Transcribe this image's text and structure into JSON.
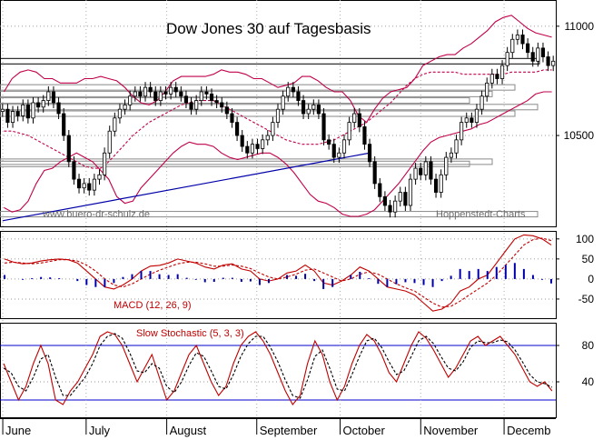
{
  "chart_data": [
    {
      "type": "candlestick",
      "title": "Dow Jones 30 auf Tagesbasis",
      "credit_left": "www.buero-dr-schulz.de",
      "credit_right": "Hoppenstedt-Charts",
      "y_ticks": [
        {
          "label": "11000",
          "value": 11000
        },
        {
          "label": "10500",
          "value": 10500
        }
      ],
      "ylim": [
        10080,
        11120
      ],
      "series": [
        {
          "name": "Kurs",
          "kind": "ohlc",
          "close": [
            10620,
            10560,
            10610,
            10590,
            10640,
            10580,
            10650,
            10630,
            10660,
            10700,
            10650,
            10600,
            10500,
            10380,
            10300,
            10260,
            10280,
            10250,
            10300,
            10320,
            10420,
            10520,
            10580,
            10620,
            10640,
            10680,
            10700,
            10680,
            10720,
            10700,
            10660,
            10700,
            10690,
            10720,
            10700,
            10680,
            10650,
            10620,
            10660,
            10700,
            10690,
            10660,
            10650,
            10630,
            10600,
            10560,
            10500,
            10450,
            10420,
            10460,
            10440,
            10480,
            10500,
            10560,
            10620,
            10680,
            10720,
            10700,
            10660,
            10600,
            10620,
            10640,
            10600,
            10480,
            10460,
            10400,
            10420,
            10480,
            10560,
            10600,
            10540,
            10460,
            10380,
            10280,
            10220,
            10180,
            10150,
            10200,
            10240,
            10180,
            10300,
            10350,
            10320,
            10380,
            10300,
            10240,
            10320,
            10400,
            10420,
            10480,
            10560,
            10580,
            10560,
            10620,
            10680,
            10740,
            10780,
            10760,
            10820,
            10880,
            10940,
            10960,
            10920,
            10880,
            10840,
            10900,
            10860,
            10820,
            10840
          ]
        },
        {
          "name": "Bollinger oben",
          "kind": "line",
          "color": "#c0004a",
          "values": [
            10700,
            10760,
            10790,
            10800,
            10790,
            10760,
            10760,
            10740,
            10740,
            10740,
            10760,
            10760,
            10770,
            10760,
            10750,
            10720,
            10680,
            10650,
            10640,
            10660,
            10700,
            10750,
            10770,
            10770,
            10770,
            10770,
            10780,
            10800,
            10790,
            10790,
            10780,
            10760,
            10760,
            10740,
            10720,
            10730,
            10740,
            10770,
            10770,
            10750,
            10720,
            10700,
            10700,
            10660,
            10590,
            10560,
            10620,
            10670,
            10700,
            10710,
            10720,
            10760,
            10820,
            10840,
            10860,
            10870,
            10870,
            10900,
            10920,
            10950,
            10980,
            11020,
            11040,
            11050,
            11020,
            10990,
            10970,
            10960,
            10950
          ]
        },
        {
          "name": "Bollinger mitte",
          "kind": "line",
          "color": "#c0004a",
          "dash": true,
          "values": [
            10520,
            10520,
            10510,
            10500,
            10480,
            10460,
            10440,
            10420,
            10400,
            10380,
            10360,
            10350,
            10350,
            10380,
            10420,
            10460,
            10500,
            10530,
            10560,
            10580,
            10600,
            10620,
            10640,
            10650,
            10660,
            10660,
            10660,
            10640,
            10620,
            10600,
            10580,
            10560,
            10540,
            10520,
            10500,
            10480,
            10470,
            10460,
            10460,
            10460,
            10470,
            10480,
            10500,
            10520,
            10540,
            10560,
            10590,
            10620,
            10650,
            10690,
            10730,
            10760,
            10780,
            10790,
            10790,
            10790,
            10790,
            10780,
            10780,
            10780,
            10780,
            10780,
            10780,
            10790,
            10790,
            10790,
            10790,
            10800,
            10800
          ]
        },
        {
          "name": "Bollinger unten",
          "kind": "line",
          "color": "#c0004a",
          "values": [
            10170,
            10150,
            10160,
            10200,
            10280,
            10340,
            10350,
            10380,
            10400,
            10420,
            10400,
            10380,
            10340,
            10300,
            10220,
            10190,
            10200,
            10260,
            10300,
            10340,
            10380,
            10420,
            10450,
            10470,
            10460,
            10460,
            10450,
            10420,
            10400,
            10390,
            10400,
            10410,
            10420,
            10420,
            10400,
            10370,
            10330,
            10280,
            10230,
            10200,
            10190,
            10170,
            10140,
            10130,
            10130,
            10140,
            10160,
            10200,
            10240,
            10280,
            10330,
            10380,
            10430,
            10470,
            10490,
            10500,
            10510,
            10520,
            10530,
            10550,
            10560,
            10580,
            10600,
            10620,
            10640,
            10660,
            10690,
            10700,
            10700
          ]
        },
        {
          "name": "Trendlinie",
          "kind": "segment",
          "color": "#0000aa",
          "points": [
            [
              0,
              10110
            ],
            [
              72,
              10420
            ]
          ]
        }
      ],
      "levels": [
        10840,
        10720,
        10690,
        10660,
        10630,
        10600,
        10380,
        10370,
        10140
      ],
      "grid": "dotted"
    },
    {
      "type": "line",
      "label": "MACD (12, 26, 9)",
      "y_ticks": [
        {
          "label": "100",
          "value": 100
        },
        {
          "label": "50",
          "value": 50
        },
        {
          "label": "0",
          "value": 0
        },
        {
          "label": "-50",
          "value": -50
        }
      ],
      "ylim": [
        -100,
        120
      ],
      "series": [
        {
          "name": "MACD",
          "color": "#c00000",
          "values": [
            50,
            42,
            38,
            40,
            45,
            48,
            50,
            48,
            40,
            20,
            0,
            -20,
            -25,
            -15,
            0,
            20,
            32,
            34,
            40,
            50,
            45,
            40,
            30,
            25,
            35,
            38,
            25,
            20,
            0,
            -5,
            0,
            15,
            20,
            35,
            20,
            -10,
            -15,
            -5,
            10,
            30,
            20,
            0,
            -20,
            -25,
            -30,
            -40,
            -60,
            -80,
            -75,
            -60,
            -30,
            -20,
            0,
            10,
            40,
            70,
            100,
            110,
            108,
            100,
            85
          ]
        },
        {
          "name": "Signal",
          "color": "#c00000",
          "dash": true,
          "values": [
            40,
            42,
            40,
            38,
            40,
            44,
            48,
            48,
            45,
            35,
            20,
            0,
            -15,
            -20,
            -12,
            0,
            12,
            22,
            30,
            38,
            42,
            42,
            38,
            32,
            32,
            35,
            32,
            26,
            15,
            5,
            0,
            5,
            12,
            22,
            25,
            15,
            5,
            -5,
            0,
            12,
            18,
            12,
            0,
            -12,
            -22,
            -30,
            -45,
            -60,
            -70,
            -68,
            -55,
            -40,
            -25,
            -10,
            10,
            35,
            60,
            85,
            98,
            102,
            96
          ]
        },
        {
          "name": "Histogramm",
          "kind": "bars",
          "color": "#0000aa",
          "values": [
            10,
            0,
            -2,
            2,
            5,
            4,
            2,
            0,
            -5,
            -15,
            -20,
            -20,
            -10,
            5,
            12,
            20,
            20,
            12,
            10,
            12,
            3,
            -2,
            -8,
            -7,
            3,
            3,
            -7,
            -6,
            -15,
            -10,
            0,
            10,
            8,
            13,
            -5,
            -25,
            -20,
            0,
            10,
            18,
            2,
            -12,
            -20,
            -13,
            -8,
            -10,
            -15,
            -20,
            -5,
            8,
            25,
            20,
            25,
            20,
            30,
            35,
            40,
            25,
            10,
            -2,
            -11
          ]
        }
      ],
      "grid": "dotted"
    },
    {
      "type": "line",
      "label": "Slow Stochastic (5, 3, 3)",
      "y_ticks": [
        {
          "label": "80",
          "value": 80
        },
        {
          "label": "40",
          "value": 40
        }
      ],
      "ylim": [
        0,
        105
      ],
      "bands": [
        80,
        20
      ],
      "series": [
        {
          "name": "%K",
          "color": "#c00000",
          "values": [
            60,
            40,
            20,
            35,
            60,
            80,
            60,
            20,
            15,
            30,
            40,
            55,
            70,
            90,
            95,
            92,
            80,
            60,
            40,
            55,
            70,
            45,
            20,
            30,
            50,
            70,
            80,
            60,
            40,
            25,
            35,
            60,
            80,
            90,
            95,
            85,
            70,
            50,
            30,
            15,
            25,
            60,
            85,
            70,
            40,
            20,
            35,
            60,
            80,
            92,
            85,
            70,
            50,
            40,
            60,
            80,
            95,
            88,
            75,
            60,
            45,
            55,
            70,
            85,
            90,
            80,
            85,
            90,
            80,
            70,
            55,
            40,
            35,
            40,
            30
          ]
        },
        {
          "name": "%D",
          "color": "#000000",
          "dash": true,
          "values": [
            55,
            50,
            35,
            30,
            45,
            65,
            70,
            45,
            25,
            25,
            35,
            45,
            60,
            80,
            90,
            93,
            88,
            72,
            52,
            50,
            60,
            55,
            35,
            28,
            40,
            58,
            72,
            68,
            52,
            35,
            32,
            48,
            68,
            82,
            90,
            90,
            78,
            62,
            42,
            25,
            22,
            42,
            68,
            75,
            55,
            32,
            30,
            48,
            68,
            85,
            88,
            78,
            62,
            48,
            52,
            68,
            85,
            90,
            82,
            68,
            55,
            52,
            62,
            78,
            85,
            83,
            83,
            86,
            84,
            75,
            62,
            48,
            40,
            38,
            34
          ]
        }
      ],
      "grid": "dotted"
    }
  ],
  "x_axis": {
    "months": [
      "June",
      "July",
      "August",
      "September",
      "October",
      "November",
      "Decemb"
    ]
  }
}
